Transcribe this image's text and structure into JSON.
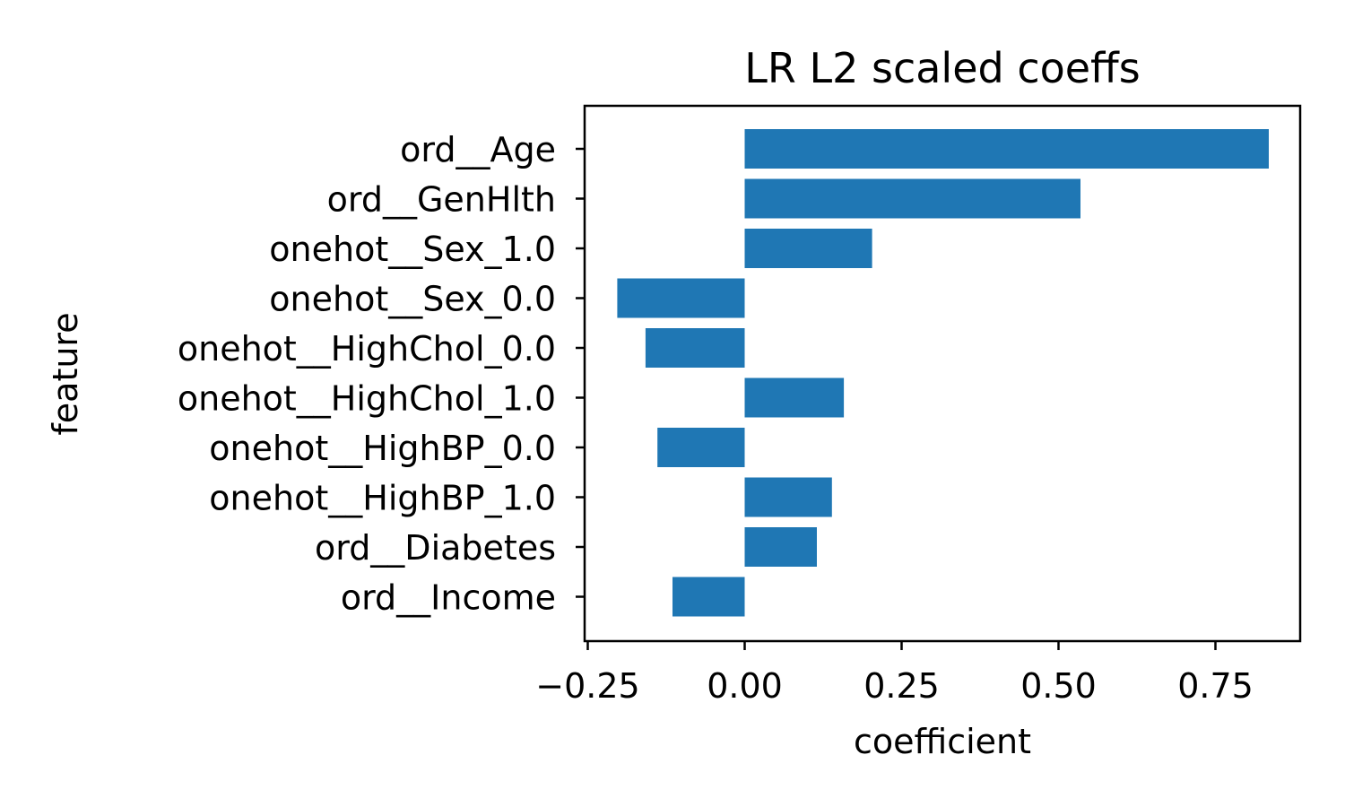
{
  "chart_data": {
    "type": "bar",
    "orientation": "horizontal",
    "title": "LR L2 scaled coeffs",
    "xlabel": "coefficient",
    "ylabel": "feature",
    "categories": [
      "ord__Age",
      "ord__GenHlth",
      "onehot__Sex_1.0",
      "onehot__Sex_0.0",
      "onehot__HighChol_0.0",
      "onehot__HighChol_1.0",
      "onehot__HighBP_0.0",
      "onehot__HighBP_1.0",
      "ord__Diabetes",
      "ord__Income"
    ],
    "values": [
      0.835,
      0.535,
      0.203,
      -0.203,
      -0.158,
      0.158,
      -0.139,
      0.139,
      0.115,
      -0.115
    ],
    "xlim": [
      -0.255,
      0.885
    ],
    "xticks": [
      -0.25,
      0.0,
      0.25,
      0.5,
      0.75
    ],
    "xtick_labels": [
      "−0.25",
      "0.00",
      "0.25",
      "0.50",
      "0.75"
    ],
    "grid": false,
    "bar_color": "#1f77b4"
  }
}
